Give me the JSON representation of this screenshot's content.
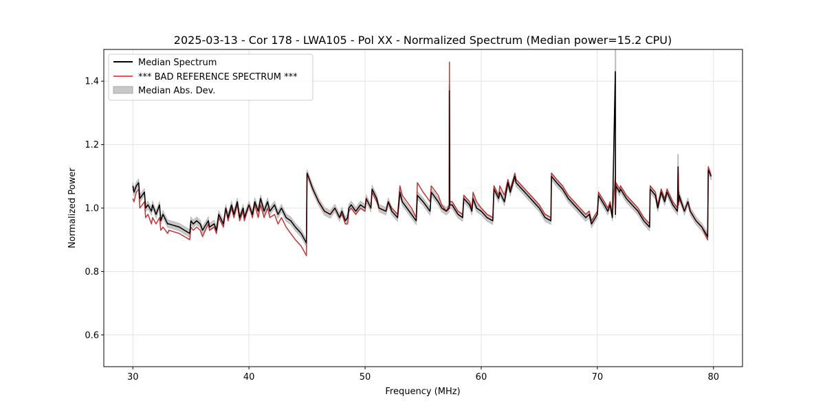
{
  "chart_data": {
    "type": "line",
    "title": "2025-03-13 - Cor 178 - LWA105 - Pol XX - Normalized Spectrum (Median power=15.2 CPU)",
    "xlabel": "Frequency (MHz)",
    "ylabel": "Normalized Power",
    "xlim": [
      27.5,
      82.5
    ],
    "ylim": [
      0.5,
      1.5
    ],
    "xticks": [
      30,
      40,
      50,
      60,
      70,
      80
    ],
    "yticks": [
      0.6,
      0.8,
      1.0,
      1.2,
      1.4
    ],
    "grid": true,
    "legend_position": "upper-left",
    "colors": {
      "median": "#000000",
      "reference": "#f05050",
      "mad": "#c8c8c8"
    },
    "series": [
      {
        "name": "Median Spectrum",
        "x": [
          30.0,
          30.1,
          30.3,
          30.5,
          30.6,
          31.0,
          31.1,
          31.3,
          31.6,
          31.7,
          32.0,
          32.3,
          32.4,
          32.6,
          33.0,
          33.1,
          34.0,
          34.9,
          35.0,
          35.2,
          35.5,
          35.8,
          36.0,
          36.5,
          36.6,
          37.0,
          37.2,
          37.4,
          37.8,
          38.0,
          38.2,
          38.5,
          38.7,
          39.0,
          39.2,
          39.5,
          39.6,
          40.0,
          40.3,
          40.5,
          40.8,
          41.0,
          41.3,
          41.6,
          41.8,
          42.2,
          42.5,
          42.8,
          43.2,
          43.6,
          44.0,
          44.5,
          44.95,
          45.0,
          45.2,
          45.5,
          46.0,
          46.5,
          47.0,
          47.4,
          47.8,
          48.0,
          48.3,
          48.5,
          48.6,
          48.8,
          49.2,
          49.6,
          50.0,
          50.1,
          50.5,
          50.6,
          51.0,
          51.2,
          51.8,
          52.0,
          52.3,
          52.8,
          53.0,
          53.2,
          53.6,
          54.0,
          54.4,
          54.5,
          55.0,
          55.6,
          55.7,
          56.3,
          56.6,
          57.0,
          57.25,
          57.26,
          57.3,
          57.5,
          58.0,
          58.4,
          58.5,
          59.0,
          59.2,
          59.3,
          59.6,
          60.0,
          60.5,
          61.0,
          61.1,
          61.5,
          61.6,
          62.0,
          62.3,
          62.5,
          62.9,
          63.0,
          63.5,
          64.0,
          64.5,
          65.0,
          65.5,
          66.0,
          66.05,
          66.5,
          67.0,
          67.5,
          68.0,
          68.5,
          69.0,
          69.3,
          69.5,
          70.0,
          70.1,
          70.6,
          70.9,
          71.1,
          71.3,
          71.55,
          71.56,
          71.6,
          71.9,
          72.0,
          72.5,
          73.0,
          73.5,
          74.0,
          74.5,
          74.55,
          75.0,
          75.2,
          75.5,
          75.8,
          76.0,
          76.5,
          76.9,
          76.95,
          77.0,
          77.05,
          77.5,
          77.8,
          78.0,
          78.5,
          79.0,
          79.5,
          79.55,
          79.8
        ],
        "y": [
          1.07,
          1.05,
          1.07,
          1.08,
          1.03,
          1.05,
          1.0,
          1.01,
          0.99,
          1.01,
          0.98,
          1.01,
          0.96,
          0.98,
          0.95,
          0.95,
          0.94,
          0.92,
          0.96,
          0.95,
          0.96,
          0.95,
          0.93,
          0.96,
          0.94,
          0.95,
          0.93,
          0.98,
          0.95,
          1.0,
          0.97,
          1.01,
          0.98,
          1.02,
          0.97,
          1.0,
          0.97,
          1.01,
          0.98,
          1.02,
          0.99,
          1.03,
          0.99,
          1.02,
          0.99,
          1.01,
          0.98,
          1.0,
          0.97,
          0.96,
          0.94,
          0.92,
          0.89,
          1.11,
          1.09,
          1.06,
          1.02,
          0.99,
          0.98,
          1.0,
          0.97,
          0.99,
          0.96,
          0.97,
          1.0,
          1.01,
          0.99,
          1.01,
          1.0,
          1.03,
          1.0,
          1.06,
          1.03,
          1.0,
          0.99,
          1.02,
          0.99,
          0.97,
          1.05,
          1.02,
          1.0,
          0.98,
          0.96,
          1.04,
          1.02,
          0.99,
          1.05,
          1.02,
          1.0,
          0.99,
          1.0,
          1.37,
          1.01,
          1.01,
          0.98,
          0.97,
          1.03,
          1.01,
          0.99,
          1.03,
          1.0,
          0.99,
          0.97,
          0.96,
          1.06,
          1.03,
          1.05,
          1.02,
          1.08,
          1.05,
          1.1,
          1.08,
          1.06,
          1.04,
          1.02,
          1.0,
          0.97,
          0.96,
          1.1,
          1.08,
          1.06,
          1.03,
          1.01,
          0.99,
          0.97,
          0.98,
          0.95,
          0.98,
          1.04,
          1.01,
          0.99,
          1.01,
          0.97,
          1.43,
          0.98,
          1.07,
          1.05,
          1.06,
          1.03,
          1.01,
          0.99,
          0.96,
          0.94,
          1.06,
          1.04,
          1.0,
          1.05,
          1.02,
          1.05,
          1.01,
          0.99,
          1.13,
          1.02,
          1.04,
          0.99,
          1.02,
          0.99,
          0.96,
          0.94,
          0.91,
          1.12,
          1.1
        ],
        "style": "solid"
      },
      {
        "name": "*** BAD REFERENCE SPECTRUM ***",
        "x": [
          30.0,
          30.1,
          30.3,
          30.5,
          30.6,
          31.0,
          31.1,
          31.3,
          31.6,
          31.7,
          32.0,
          32.3,
          32.4,
          32.6,
          33.0,
          33.1,
          34.0,
          34.9,
          35.0,
          35.2,
          35.5,
          35.8,
          36.0,
          36.5,
          36.6,
          37.0,
          37.2,
          37.4,
          37.8,
          38.0,
          38.2,
          38.5,
          38.7,
          39.0,
          39.2,
          39.5,
          39.6,
          40.0,
          40.3,
          40.5,
          40.8,
          41.0,
          41.3,
          41.6,
          41.8,
          42.2,
          42.5,
          42.8,
          43.2,
          43.6,
          44.0,
          44.5,
          44.95,
          45.0,
          45.2,
          45.5,
          46.0,
          46.5,
          47.0,
          47.4,
          47.8,
          48.0,
          48.3,
          48.5,
          48.6,
          48.8,
          49.2,
          49.6,
          50.0,
          50.1,
          50.5,
          50.6,
          51.0,
          51.2,
          51.8,
          52.0,
          52.3,
          52.8,
          53.0,
          53.2,
          53.6,
          54.0,
          54.4,
          54.5,
          55.0,
          55.6,
          55.7,
          56.3,
          56.6,
          57.0,
          57.25,
          57.26,
          57.3,
          57.5,
          58.0,
          58.4,
          58.5,
          59.0,
          59.2,
          59.3,
          59.6,
          60.0,
          60.5,
          61.0,
          61.1,
          61.5,
          61.6,
          62.0,
          62.3,
          62.5,
          62.9,
          63.0,
          63.5,
          64.0,
          64.5,
          65.0,
          65.5,
          66.0,
          66.05,
          66.5,
          67.0,
          67.5,
          68.0,
          68.5,
          69.0,
          69.3,
          69.5,
          70.0,
          70.1,
          70.6,
          70.9,
          71.1,
          71.3,
          71.55,
          71.56,
          71.6,
          71.9,
          72.0,
          72.5,
          73.0,
          73.5,
          74.0,
          74.5,
          74.55,
          75.0,
          75.2,
          75.5,
          75.8,
          76.0,
          76.5,
          76.9,
          76.95,
          77.0,
          77.05,
          77.5,
          77.8,
          78.0,
          78.5,
          79.0,
          79.5,
          79.55,
          79.8
        ],
        "y": [
          1.03,
          1.02,
          1.05,
          1.06,
          1.0,
          1.02,
          0.97,
          0.98,
          0.95,
          0.97,
          0.95,
          0.97,
          0.93,
          0.94,
          0.92,
          0.93,
          0.92,
          0.9,
          0.94,
          0.93,
          0.94,
          0.93,
          0.91,
          0.95,
          0.93,
          0.94,
          0.92,
          0.97,
          0.94,
          1.0,
          0.96,
          1.0,
          0.97,
          1.01,
          0.96,
          0.99,
          0.96,
          1.01,
          0.97,
          1.01,
          0.97,
          1.01,
          0.97,
          1.0,
          0.97,
          0.98,
          0.95,
          0.97,
          0.94,
          0.92,
          0.9,
          0.88,
          0.85,
          1.11,
          1.09,
          1.06,
          1.02,
          0.99,
          0.98,
          1.0,
          0.97,
          0.98,
          0.95,
          0.95,
          0.99,
          1.0,
          0.98,
          1.0,
          0.99,
          1.03,
          1.0,
          1.05,
          1.02,
          1.0,
          0.99,
          1.02,
          1.0,
          0.98,
          1.07,
          1.04,
          1.02,
          1.0,
          0.97,
          1.08,
          1.05,
          1.02,
          1.07,
          1.04,
          1.01,
          0.99,
          1.01,
          1.46,
          1.02,
          1.02,
          0.99,
          0.98,
          1.04,
          1.02,
          1.0,
          1.05,
          1.02,
          1.0,
          0.98,
          0.97,
          1.07,
          1.04,
          1.07,
          1.04,
          1.09,
          1.06,
          1.11,
          1.09,
          1.07,
          1.05,
          1.03,
          1.01,
          0.98,
          0.97,
          1.11,
          1.09,
          1.07,
          1.04,
          1.02,
          1.0,
          0.98,
          0.99,
          0.96,
          0.99,
          1.05,
          1.02,
          1.0,
          1.02,
          0.98,
          1.1,
          0.99,
          1.08,
          1.06,
          1.07,
          1.04,
          1.02,
          1.0,
          0.97,
          0.95,
          1.07,
          1.05,
          1.01,
          1.06,
          1.03,
          1.06,
          1.02,
          1.0,
          1.12,
          1.01,
          1.03,
          0.99,
          1.02,
          0.99,
          0.96,
          0.94,
          0.9,
          1.13,
          1.1
        ],
        "style": "solid"
      },
      {
        "name": "Median Abs. Dev.",
        "kind": "band",
        "half_width": 0.012,
        "spikes": [
          [
            57.26,
            1.39
          ],
          [
            71.56,
            1.52
          ],
          [
            76.95,
            1.17
          ]
        ]
      }
    ]
  }
}
